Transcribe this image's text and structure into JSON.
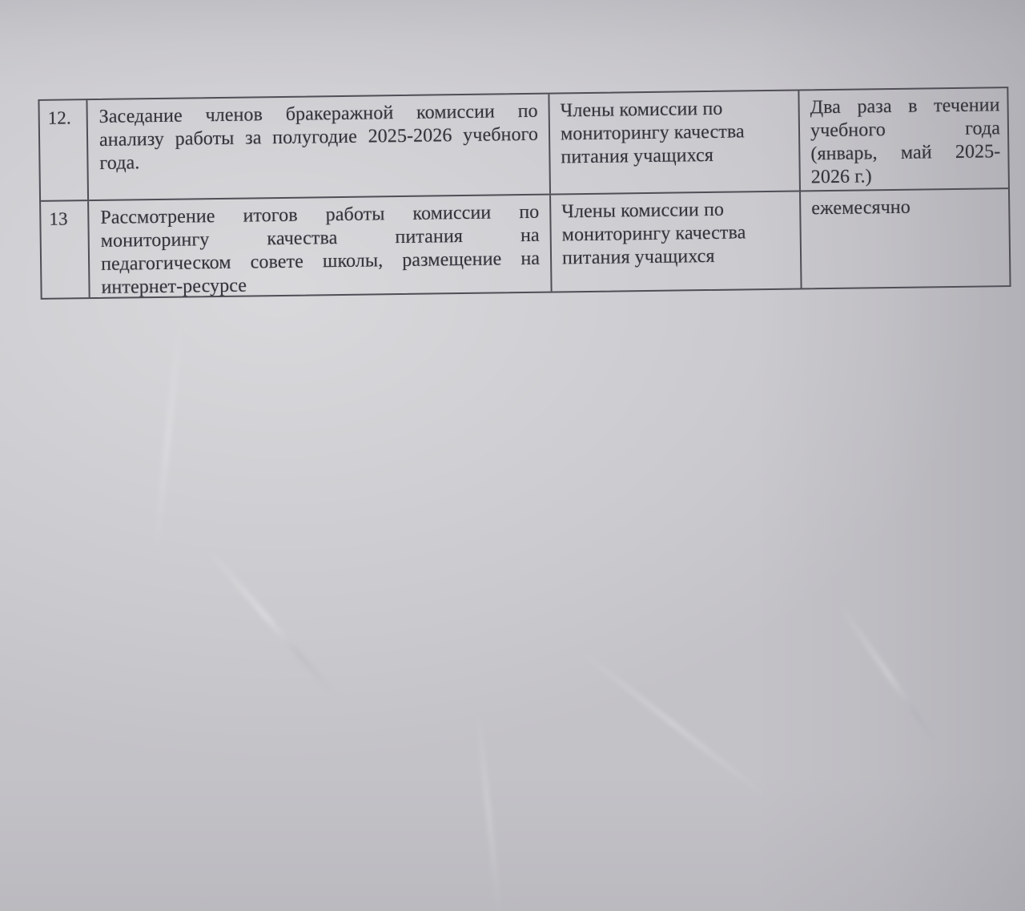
{
  "document": {
    "kind": "photographed paper page, fragment of a plan table",
    "language": "ru"
  },
  "colors": {
    "paper": "#c3c2c7",
    "ink": "#34343c",
    "table_border": "#4f4e56"
  },
  "table": {
    "rows": [
      {
        "num": "12.",
        "activity_lines": [
          "Заседание членов бракеражной комиссии по",
          "анализу работы за полугодие 2025-2026 учебного",
          "года."
        ],
        "responsible_lines": [
          "Члены комиссии по",
          "мониторингу качества",
          "питания учащихся"
        ],
        "timing_lines": [
          "Два раза в течении",
          "учебного года",
          "(январь, май 2025-",
          "2026 г.)"
        ]
      },
      {
        "num": "13",
        "activity_lines": [
          "Рассмотрение итогов работы комиссии по",
          "мониторингу качества питания на",
          "педагогическом совете школы, размещение на",
          "интернет-ресурсе"
        ],
        "responsible_lines": [
          "Члены комиссии по",
          "мониторингу качества",
          "питания учащихся"
        ],
        "timing_lines": [
          "ежемесячно"
        ]
      }
    ]
  }
}
